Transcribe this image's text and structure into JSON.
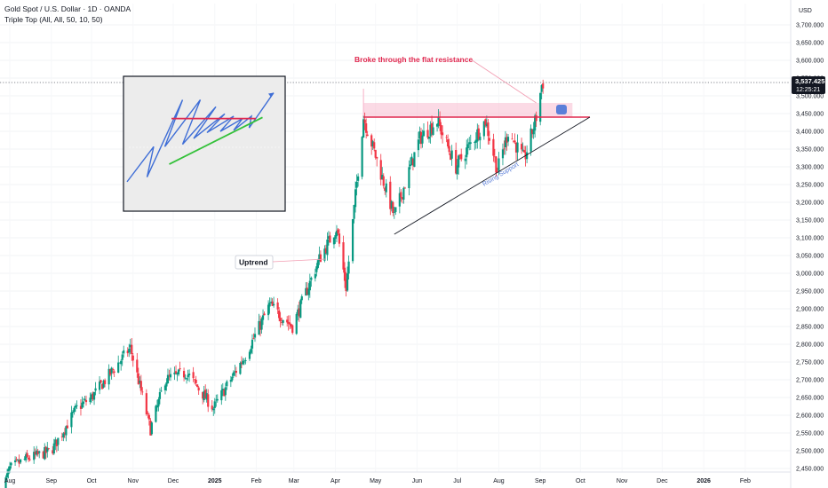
{
  "header": {
    "title": "Gold Spot / U.S. Dollar · 1D · OANDA",
    "indicator": "Triple Top (All, All, 50, 10, 50)"
  },
  "chart_data": {
    "type": "candlestick",
    "price_axis": {
      "currency": "USD",
      "ylim": [
        2440,
        3760
      ],
      "ticks": [
        2450,
        2500,
        2550,
        2600,
        2650,
        2700,
        2750,
        2800,
        2850,
        2900,
        2950,
        3000,
        3050,
        3100,
        3150,
        3200,
        3250,
        3300,
        3350,
        3400,
        3450,
        3500,
        3550,
        3600,
        3650,
        3700
      ],
      "tick_labels": [
        "2,450.000",
        "2,500.000",
        "2,550.000",
        "2,600.000",
        "2,650.000",
        "2,700.000",
        "2,750.000",
        "2,800.000",
        "2,850.000",
        "2,900.000",
        "2,950.000",
        "3,000.000",
        "3,050.000",
        "3,100.000",
        "3,150.000",
        "3,200.000",
        "3,250.000",
        "3,300.000",
        "3,350.000",
        "3,400.000",
        "3,450.000",
        "3,500.000",
        "3,550.000",
        "3,600.000",
        "3,650.000",
        "3,700.000"
      ]
    },
    "time_axis": {
      "labels": [
        "Aug",
        "Sep",
        "Oct",
        "Nov",
        "Dec",
        "2025",
        "Feb",
        "Mar",
        "Apr",
        "May",
        "Jun",
        "Jul",
        "Aug",
        "Sep",
        "Oct",
        "Nov",
        "Dec",
        "2026",
        "Feb"
      ]
    },
    "last_price": {
      "value": 3537.425,
      "label": "3,537.425",
      "countdown": "12:25:21",
      "color": "#089981"
    },
    "colors": {
      "up": "#089981",
      "down": "#f23645",
      "resistance": "#e0284f",
      "support": "#131722",
      "zone": "#f8bbd0"
    },
    "anchors": [
      {
        "date": "2024-07-26",
        "price": 2385
      },
      {
        "date": "2024-08-01",
        "price": 2450
      },
      {
        "date": "2024-08-12",
        "price": 2475
      },
      {
        "date": "2024-09-01",
        "price": 2500
      },
      {
        "date": "2024-09-20",
        "price": 2620
      },
      {
        "date": "2024-10-01",
        "price": 2650
      },
      {
        "date": "2024-10-30",
        "price": 2790
      },
      {
        "date": "2024-11-14",
        "price": 2560
      },
      {
        "date": "2024-11-25",
        "price": 2700
      },
      {
        "date": "2024-12-11",
        "price": 2720
      },
      {
        "date": "2024-12-31",
        "price": 2620
      },
      {
        "date": "2025-01-24",
        "price": 2770
      },
      {
        "date": "2025-02-11",
        "price": 2910
      },
      {
        "date": "2025-02-28",
        "price": 2850
      },
      {
        "date": "2025-03-20",
        "price": 3040
      },
      {
        "date": "2025-04-02",
        "price": 3130
      },
      {
        "date": "2025-04-09",
        "price": 2960
      },
      {
        "date": "2025-04-22",
        "price": 3440
      },
      {
        "date": "2025-05-15",
        "price": 3160
      },
      {
        "date": "2025-06-03",
        "price": 3380
      },
      {
        "date": "2025-06-16",
        "price": 3430
      },
      {
        "date": "2025-06-30",
        "price": 3300
      },
      {
        "date": "2025-07-22",
        "price": 3430
      },
      {
        "date": "2025-07-31",
        "price": 3290
      },
      {
        "date": "2025-08-08",
        "price": 3400
      },
      {
        "date": "2025-08-20",
        "price": 3320
      },
      {
        "date": "2025-08-29",
        "price": 3440
      },
      {
        "date": "2025-09-02",
        "price": 3530
      },
      {
        "date": "2025-09-03",
        "price": 3537.425
      }
    ],
    "resistance": {
      "start": "2025-04-22",
      "end": "2025-10-08",
      "price": 3440
    },
    "resistance_zone": {
      "start": "2025-04-22",
      "end": "2025-09-25",
      "top": 3480,
      "bottom": 3440
    },
    "support": {
      "start": "2025-05-15",
      "price_start": 3110,
      "end": "2025-10-08",
      "price_end": 3440
    },
    "annotations": {
      "breakout": "Broke through the flat resistance",
      "uptrend": "Uptrend",
      "support": "Rising Support"
    },
    "inset": {
      "line": [
        [
          0,
          16
        ],
        [
          12,
          46
        ],
        [
          9,
          20
        ],
        [
          25,
          86
        ],
        [
          17,
          46
        ],
        [
          33,
          86
        ],
        [
          25,
          48
        ],
        [
          40,
          80
        ],
        [
          30,
          53
        ],
        [
          44,
          74
        ],
        [
          36,
          58
        ],
        [
          48,
          72
        ],
        [
          42,
          59
        ],
        [
          52,
          70
        ],
        [
          48,
          60
        ],
        [
          56,
          72
        ],
        [
          55,
          62
        ],
        [
          66,
          92
        ]
      ],
      "resistance_y": 70,
      "support": [
        [
          19,
          31
        ],
        [
          61,
          71
        ]
      ]
    }
  }
}
